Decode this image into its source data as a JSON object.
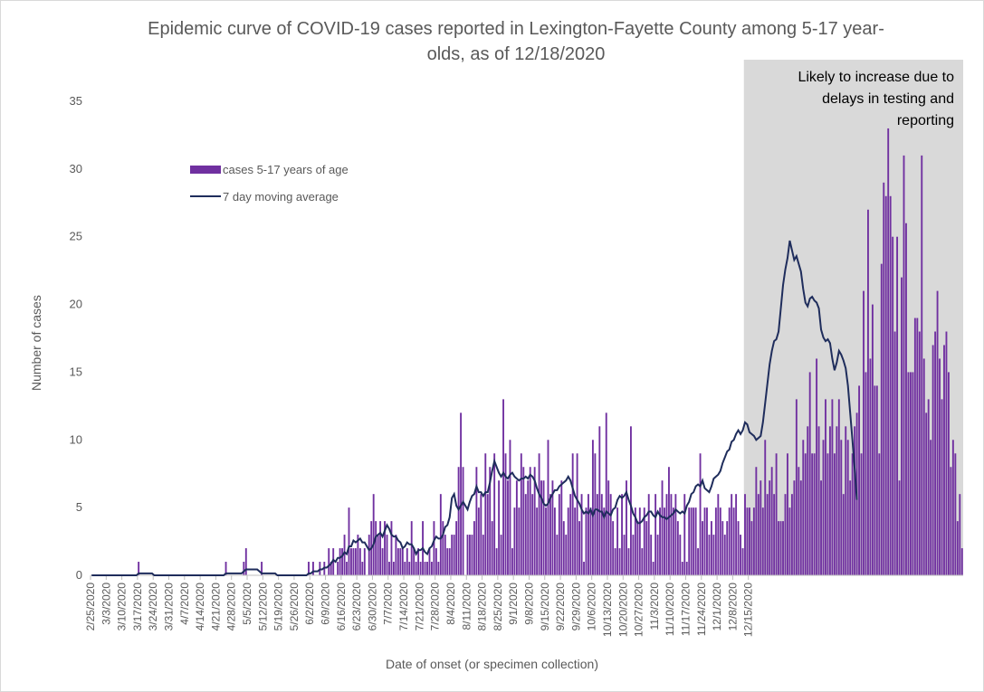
{
  "chart_data": {
    "type": "bar",
    "title": "Epidemic curve of COVID-19 cases reported in Lexington-Fayette County among 5-17 year-olds, as of 12/18/2020",
    "title_lines": [
      "Epidemic curve of COVID-19 cases reported in Lexington-Fayette County among 5-17 year-",
      "olds, as of 12/18/2020"
    ],
    "xlabel": "Date of onset (or specimen collection)",
    "ylabel": "Number of cases",
    "ylim": [
      0,
      35
    ],
    "yticks": [
      0,
      5,
      10,
      15,
      20,
      25,
      30,
      35
    ],
    "grid": false,
    "start_date": "2/25/2020",
    "x_tick_labels": [
      "2/25/2020",
      "3/3/2020",
      "3/10/2020",
      "3/17/2020",
      "3/24/2020",
      "3/31/2020",
      "4/7/2020",
      "4/14/2020",
      "4/21/2020",
      "4/28/2020",
      "5/5/2020",
      "5/12/2020",
      "5/19/2020",
      "5/26/2020",
      "6/2/2020",
      "6/9/2020",
      "6/16/2020",
      "6/23/2020",
      "6/30/2020",
      "7/7/2020",
      "7/14/2020",
      "7/21/2020",
      "7/28/2020",
      "8/4/2020",
      "8/11/2020",
      "8/18/2020",
      "8/25/2020",
      "9/1/2020",
      "9/8/2020",
      "9/15/2020",
      "9/22/2020",
      "9/29/2020",
      "10/6/2020",
      "10/13/2020",
      "10/20/2020",
      "10/27/2020",
      "11/3/2020",
      "11/10/2020",
      "11/17/2020",
      "11/24/2020",
      "12/1/2020",
      "12/8/2020",
      "12/15/2020"
    ],
    "legend_position": "upper-left",
    "annotation": {
      "lines": [
        "Likely to increase due to",
        "delays in testing and",
        "reporting"
      ],
      "shaded_from": "12/13/2020"
    },
    "colors": {
      "bars": "#7030a0",
      "line": "#1f2d5c",
      "shade": "#d9d9d9"
    },
    "series": [
      {
        "name": "cases 5-17 years of age",
        "type": "bar",
        "values": [
          0,
          0,
          0,
          0,
          0,
          0,
          0,
          0,
          0,
          0,
          0,
          0,
          0,
          0,
          0,
          0,
          0,
          0,
          0,
          0,
          0,
          1,
          0,
          0,
          0,
          0,
          0,
          0,
          0,
          0,
          0,
          0,
          0,
          0,
          0,
          0,
          0,
          0,
          0,
          0,
          0,
          0,
          0,
          0,
          0,
          0,
          0,
          0,
          0,
          0,
          0,
          0,
          0,
          0,
          0,
          0,
          0,
          0,
          0,
          0,
          1,
          0,
          0,
          0,
          0,
          0,
          0,
          0,
          1,
          2,
          0,
          0,
          0,
          0,
          0,
          0,
          1,
          0,
          0,
          0,
          0,
          0,
          0,
          0,
          0,
          0,
          0,
          0,
          0,
          0,
          0,
          0,
          0,
          0,
          0,
          0,
          0,
          1,
          0,
          1,
          0,
          0,
          1,
          0,
          1,
          0,
          2,
          1,
          2,
          0,
          1,
          2,
          2,
          3,
          1,
          5,
          2,
          2,
          2,
          3,
          2,
          1,
          2,
          0,
          3,
          4,
          6,
          4,
          3,
          4,
          2,
          4,
          3,
          1,
          4,
          1,
          3,
          2,
          2,
          2,
          1,
          2,
          1,
          4,
          2,
          1,
          2,
          1,
          4,
          1,
          1,
          2,
          1,
          4,
          2,
          1,
          6,
          4,
          3,
          2,
          2,
          3,
          3,
          4,
          8,
          12,
          8,
          0,
          3,
          3,
          3,
          4,
          8,
          5,
          6,
          3,
          9,
          6,
          8,
          4,
          9,
          2,
          7,
          3,
          13,
          9,
          7,
          10,
          2,
          5,
          7,
          5,
          9,
          8,
          6,
          7,
          8,
          6,
          8,
          5,
          9,
          7,
          7,
          5,
          10,
          6,
          7,
          5,
          3,
          6,
          7,
          4,
          3,
          5,
          6,
          9,
          5,
          9,
          4,
          6,
          1,
          5,
          6,
          5,
          10,
          9,
          6,
          11,
          6,
          5,
          12,
          7,
          6,
          4,
          2,
          5,
          2,
          6,
          3,
          7,
          2,
          11,
          3,
          5,
          4,
          5,
          2,
          5,
          4,
          6,
          3,
          1,
          6,
          3,
          5,
          7,
          5,
          6,
          8,
          6,
          5,
          6,
          4,
          3,
          1,
          6,
          1,
          5,
          5,
          5,
          5,
          2,
          9,
          4,
          5,
          5,
          3,
          4,
          3,
          5,
          6,
          5,
          4,
          3,
          4,
          5,
          6,
          5,
          6,
          4,
          3,
          2,
          6,
          5,
          5,
          4,
          5,
          8,
          6,
          7,
          5,
          10,
          6,
          7,
          8,
          6,
          9,
          4,
          4,
          4,
          6,
          9,
          5,
          6,
          7,
          13,
          8,
          7,
          10,
          9,
          11,
          15,
          9,
          9,
          16,
          11,
          7,
          10,
          13,
          9,
          11,
          13,
          9,
          11,
          13,
          10,
          6,
          11,
          10,
          7,
          9,
          11,
          12,
          14,
          9,
          21,
          15,
          27,
          16,
          20,
          14,
          14,
          9,
          23,
          29,
          28,
          33,
          28,
          25,
          18,
          25,
          7,
          22,
          31,
          26,
          15,
          15,
          15,
          19,
          19,
          18,
          31,
          16,
          12,
          13,
          10,
          17,
          18,
          21,
          16,
          13,
          17,
          18,
          15,
          8,
          10,
          9,
          4,
          6,
          2
        ]
      },
      {
        "name": "7 day moving average",
        "type": "line",
        "values": [
          0,
          0,
          0,
          0,
          0,
          0,
          0,
          0,
          0,
          0,
          0,
          0,
          0,
          0,
          0,
          0,
          0,
          0,
          0,
          0,
          0,
          0.14,
          0.14,
          0.14,
          0.14,
          0.14,
          0.14,
          0.14,
          0,
          0,
          0,
          0,
          0,
          0,
          0,
          0,
          0,
          0,
          0,
          0,
          0,
          0,
          0,
          0,
          0,
          0,
          0,
          0,
          0,
          0,
          0,
          0,
          0,
          0,
          0,
          0,
          0,
          0,
          0,
          0,
          0.14,
          0.14,
          0.14,
          0.14,
          0.14,
          0.14,
          0.14,
          0.14,
          0.29,
          0.43,
          0.43,
          0.43,
          0.43,
          0.43,
          0.43,
          0.29,
          0.14,
          0.14,
          0.14,
          0.14,
          0.14,
          0.14,
          0.14,
          0,
          0,
          0,
          0,
          0,
          0,
          0,
          0,
          0,
          0,
          0,
          0,
          0,
          0,
          0.14,
          0.14,
          0.29,
          0.29,
          0.29,
          0.43,
          0.43,
          0.57,
          0.57,
          0.71,
          0.86,
          1.14,
          1.0,
          1.29,
          1.29,
          1.43,
          1.71,
          1.57,
          2.14,
          2.14,
          2.57,
          2.43,
          2.57,
          2.71,
          2.43,
          2.43,
          2.14,
          1.86,
          2.0,
          2.29,
          2.86,
          3.0,
          3.14,
          2.86,
          3.29,
          3.71,
          3.43,
          3.0,
          2.86,
          2.86,
          2.57,
          2.43,
          2.0,
          2.14,
          2.43,
          2.29,
          2.29,
          2.0,
          1.57,
          1.86,
          1.86,
          2.0,
          1.71,
          1.57,
          2.0,
          2.14,
          2.57,
          2.86,
          2.71,
          2.71,
          3.0,
          3.57,
          3.71,
          4.29,
          5.71,
          6.0,
          5.14,
          4.86,
          5.14,
          5.43,
          5.14,
          4.86,
          5.43,
          5.86,
          6.0,
          6.57,
          6.14,
          6.14,
          5.86,
          6.14,
          6.14,
          6.86,
          7.71,
          8.43,
          8.0,
          7.57,
          7.29,
          7.57,
          7.29,
          7.14,
          7.43,
          7.57,
          7.29,
          7.14,
          7.0,
          7.14,
          7.14,
          7.29,
          7.14,
          7.43,
          7.29,
          7.0,
          6.43,
          6.0,
          5.71,
          5.29,
          5.14,
          5.29,
          5.71,
          6.0,
          6.29,
          6.29,
          6.57,
          6.71,
          6.86,
          7.0,
          7.29,
          7.0,
          6.43,
          5.86,
          5.57,
          5.29,
          4.86,
          4.57,
          4.71,
          4.57,
          4.86,
          4.43,
          4.86,
          4.86,
          4.71,
          4.71,
          4.29,
          4.71,
          4.57,
          4.43,
          4.86,
          5.0,
          5.57,
          5.86,
          5.71,
          5.86,
          6.14,
          5.57,
          5.14,
          4.57,
          4.29,
          3.86,
          3.86,
          4.0,
          4.29,
          4.43,
          4.71,
          4.71,
          4.43,
          4.29,
          4.71,
          4.43,
          4.29,
          4.29,
          4.14,
          4.29,
          4.43,
          4.57,
          4.86,
          4.71,
          4.57,
          4.71,
          4.57,
          5.14,
          5.43,
          6.0,
          6.14,
          6.57,
          6.71,
          6.57,
          7.0,
          6.43,
          6.29,
          6.14,
          6.57,
          7.14,
          7.29,
          7.43,
          7.71,
          8.29,
          8.71,
          9.14,
          9.29,
          9.86,
          10.0,
          10.43,
          10.71,
          10.43,
          10.71,
          11.29,
          11.14,
          10.57,
          10.43,
          10.29,
          10.0,
          10.14,
          10.29,
          11.29,
          12.71,
          14.14,
          15.57,
          16.57,
          17.29,
          17.43,
          18.0,
          19.71,
          21.43,
          22.57,
          23.43,
          24.71,
          24.0,
          23.29,
          23.57,
          23.0,
          22.43,
          21.14,
          20.14,
          19.86,
          20.43,
          20.57,
          20.29,
          20.14,
          19.71,
          18.14,
          17.57,
          17.29,
          17.43,
          17.14,
          16.0,
          15.14,
          15.71,
          16.57,
          16.29,
          15.86,
          15.29,
          14.0,
          12.0,
          10.0,
          7.86,
          5.57
        ]
      }
    ]
  }
}
